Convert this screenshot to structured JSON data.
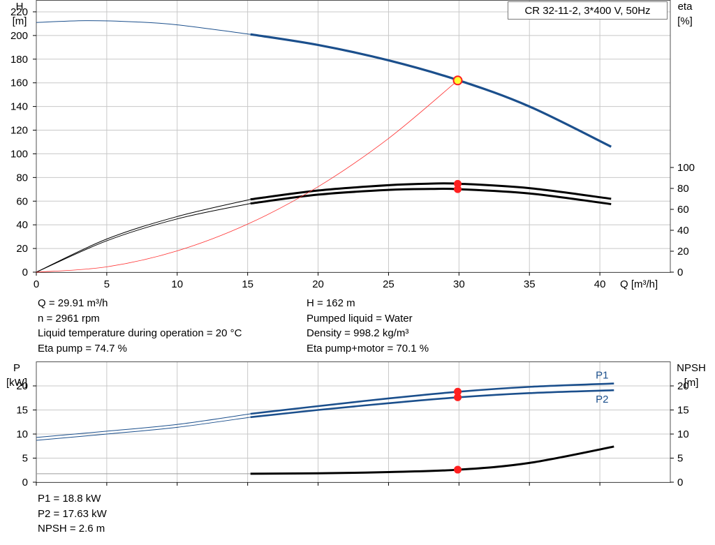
{
  "title": "CR 32-11-2, 3*400 V, 50Hz",
  "colors": {
    "head": "#1b4f8c",
    "eff": "#000000",
    "hydraulic": "#ff3030",
    "marker": "#ff2020",
    "dutypoint": "#ffff33",
    "grid": "#c8c8c8"
  },
  "chart_data": [
    {
      "type": "line",
      "name": "head-efficiency",
      "xlabel": "Q [m³/h]",
      "ylabel_left": "H\n[m]",
      "ylabel_right": "eta\n[%]",
      "xlim": [
        0,
        45
      ],
      "ylim_left": [
        0,
        230
      ],
      "ylim_right": [
        0,
        100
      ],
      "x_ticks": [
        0,
        5,
        10,
        15,
        20,
        25,
        30,
        35,
        40
      ],
      "y_ticks_left": [
        0,
        20,
        40,
        60,
        80,
        100,
        120,
        140,
        160,
        180,
        200,
        220
      ],
      "y_ticks_right": [
        0,
        20,
        40,
        60,
        80,
        100
      ],
      "grid": true,
      "series": [
        {
          "role": "head",
          "axis": "left",
          "range": [
            0,
            40.8
          ],
          "x": [
            0,
            3.5,
            7,
            10,
            15.2,
            20,
            25,
            30,
            35,
            40.8
          ],
          "y": [
            211,
            212.5,
            211.5,
            209,
            201,
            192,
            179,
            162,
            140,
            106
          ]
        },
        {
          "role": "eta-pump",
          "axis": "left",
          "range": [
            0,
            40.8
          ],
          "x": [
            0,
            5,
            10,
            15.2,
            20,
            25,
            28,
            30,
            35,
            40.8
          ],
          "y": [
            0,
            28,
            47,
            61.5,
            69,
            73.5,
            74.8,
            74.7,
            71,
            62
          ]
        },
        {
          "role": "eta-pump-motor",
          "axis": "left",
          "range": [
            0,
            40.8
          ],
          "x": [
            0,
            5,
            10,
            15.2,
            20,
            25,
            28,
            30,
            35,
            40.8
          ],
          "y": [
            0,
            26.5,
            45,
            58,
            65.5,
            69.5,
            70.3,
            70.1,
            66.5,
            57.5
          ]
        },
        {
          "role": "system-curve",
          "axis": "left",
          "range": [
            0,
            29.91
          ],
          "x": [
            0,
            5,
            10,
            15,
            20,
            25,
            29.91
          ],
          "y": [
            0,
            4.5,
            18,
            40.6,
            72.2,
            113,
            162
          ]
        }
      ],
      "duty_markers": [
        {
          "x": 29.91,
          "y": 162,
          "style": "duty"
        },
        {
          "x": 29.91,
          "y": 74.7,
          "style": "red"
        },
        {
          "x": 29.91,
          "y": 70.1,
          "style": "red"
        }
      ]
    },
    {
      "type": "line",
      "name": "power-npsh",
      "ylabel_left": "P\n[kW]",
      "ylabel_right": "NPSH\n[m]",
      "xlim": [
        0,
        45
      ],
      "ylim": [
        0,
        25
      ],
      "x_ticks": [
        0,
        5,
        10,
        15,
        20,
        25,
        30,
        35,
        40
      ],
      "y_ticks_left": [
        0,
        5,
        10,
        15,
        20
      ],
      "y_ticks_right": [
        0,
        5,
        10,
        15,
        20
      ],
      "grid": true,
      "series": [
        {
          "name": "P1",
          "axis": "left",
          "range": [
            0,
            41
          ],
          "x": [
            0,
            5,
            10,
            15.2,
            20,
            25,
            30,
            35,
            41
          ],
          "y": [
            9.3,
            10.6,
            12,
            14.2,
            15.8,
            17.4,
            18.8,
            19.8,
            20.5
          ]
        },
        {
          "name": "P2",
          "axis": "left",
          "range": [
            0,
            41
          ],
          "x": [
            0,
            5,
            10,
            15.2,
            20,
            25,
            30,
            35,
            41
          ],
          "y": [
            8.7,
            10,
            11.4,
            13.5,
            15,
            16.4,
            17.63,
            18.5,
            19.1
          ]
        },
        {
          "role": "npsh",
          "axis": "right",
          "range": [
            0,
            41
          ],
          "x": [
            0,
            15.2,
            20,
            25,
            30,
            35,
            41
          ],
          "y": [
            1.75,
            1.75,
            1.85,
            2.1,
            2.6,
            4,
            7.4
          ]
        }
      ],
      "duty_markers": [
        {
          "x": 29.91,
          "y": 18.8,
          "style": "red"
        },
        {
          "x": 29.91,
          "y": 17.63,
          "style": "red"
        },
        {
          "x": 29.91,
          "y": 2.6,
          "style": "red"
        }
      ]
    }
  ],
  "info_top_left": [
    "Q = 29.91 m³/h",
    "n = 2961 rpm",
    "Liquid temperature during operation = 20 °C",
    "Eta pump = 74.7 %"
  ],
  "info_top_right": [
    "H = 162 m",
    "Pumped liquid = Water",
    "Density = 998.2 kg/m³",
    "Eta pump+motor = 70.1 %"
  ],
  "info_bottom": [
    "P1 = 18.8 kW",
    "P2 = 17.63 kW",
    "NPSH = 2.6 m"
  ]
}
